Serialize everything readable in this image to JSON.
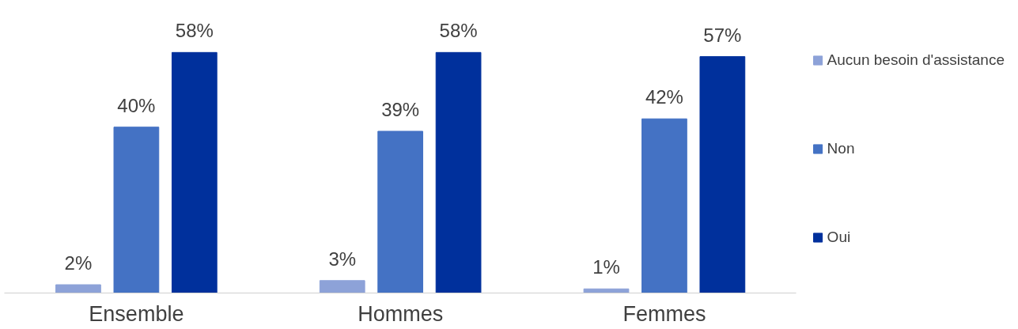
{
  "chart_data": {
    "type": "bar",
    "categories": [
      "Ensemble",
      "Hommes",
      "Femmes"
    ],
    "series": [
      {
        "name": "Aucun besoin d'assistance",
        "color": "#8da2d8",
        "values": [
          2,
          3,
          1
        ],
        "value_labels": [
          "2%",
          "3%",
          "1%"
        ]
      },
      {
        "name": "Non",
        "color": "#4472c4",
        "values": [
          40,
          39,
          42
        ],
        "value_labels": [
          "40%",
          "39%",
          "42%"
        ]
      },
      {
        "name": "Oui",
        "color": "#00309c",
        "values": [
          58,
          58,
          57
        ],
        "value_labels": [
          "58%",
          "58%",
          "57%"
        ]
      }
    ],
    "legend": "right",
    "grid": false
  }
}
